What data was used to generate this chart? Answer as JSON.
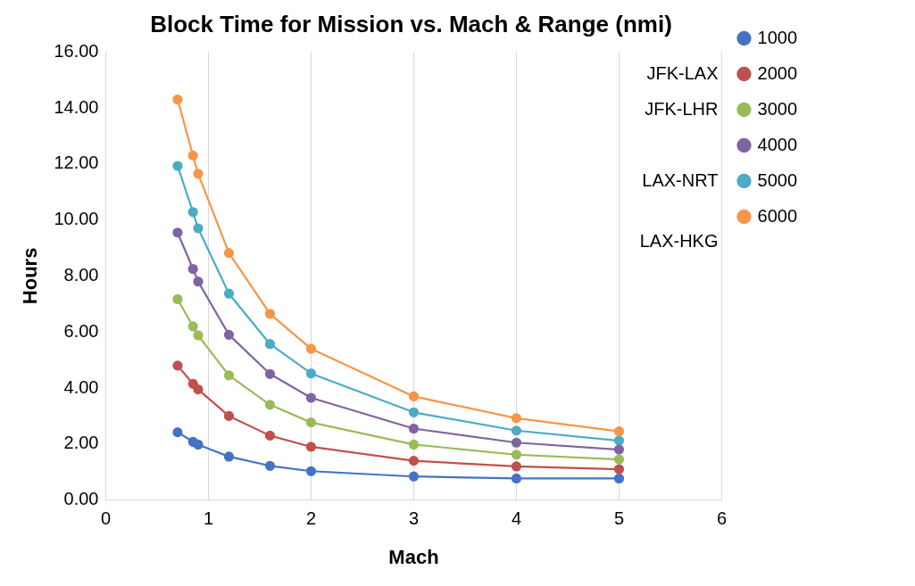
{
  "chart_data": {
    "type": "line",
    "title": "Block Time for Mission vs. Mach & Range (nmi)",
    "xlabel": "Mach",
    "ylabel": "Hours",
    "x": [
      0.7,
      0.85,
      0.9,
      1.2,
      1.6,
      2,
      3,
      4,
      5
    ],
    "series": [
      {
        "name": "1000",
        "color": "#4472c4",
        "values": [
          2.42,
          2.08,
          1.98,
          1.55,
          1.22,
          1.03,
          0.84,
          0.77,
          0.77
        ]
      },
      {
        "name": "2000",
        "color": "#c0504d",
        "values": [
          4.8,
          4.15,
          3.95,
          3.0,
          2.3,
          1.9,
          1.4,
          1.2,
          1.1
        ]
      },
      {
        "name": "3000",
        "color": "#9bbb59",
        "values": [
          7.17,
          6.2,
          5.88,
          4.45,
          3.4,
          2.77,
          1.98,
          1.62,
          1.45
        ]
      },
      {
        "name": "4000",
        "color": "#8064a2",
        "values": [
          9.55,
          8.25,
          7.8,
          5.9,
          4.5,
          3.65,
          2.55,
          2.05,
          1.8
        ]
      },
      {
        "name": "5000",
        "color": "#4bacc6",
        "values": [
          11.93,
          10.28,
          9.7,
          7.37,
          5.57,
          4.52,
          3.13,
          2.48,
          2.12
        ]
      },
      {
        "name": "6000",
        "color": "#f79646",
        "values": [
          14.3,
          12.3,
          11.65,
          8.82,
          6.65,
          5.4,
          3.7,
          2.92,
          2.45
        ]
      }
    ],
    "xlim": [
      0,
      6
    ],
    "xticks": [
      0,
      1,
      2,
      3,
      4,
      5,
      6
    ],
    "ylim": [
      0,
      16
    ],
    "yticks": [
      {
        "value": 0,
        "label": "0.00"
      },
      {
        "value": 2,
        "label": "2.00"
      },
      {
        "value": 4,
        "label": "4.00"
      },
      {
        "value": 6,
        "label": "6.00"
      },
      {
        "value": 8,
        "label": "8.00"
      },
      {
        "value": 10,
        "label": "10.00"
      },
      {
        "value": 12,
        "label": "12.00"
      },
      {
        "value": 14,
        "label": "14.00"
      },
      {
        "value": 16,
        "label": "16.00"
      }
    ],
    "grid": "x",
    "legend": "right",
    "marker": "circle",
    "line_style": "solid",
    "annotations": [
      "JFK-LAX",
      "JFK-LHR",
      "LAX-NRT",
      "LAX-HKG"
    ]
  }
}
